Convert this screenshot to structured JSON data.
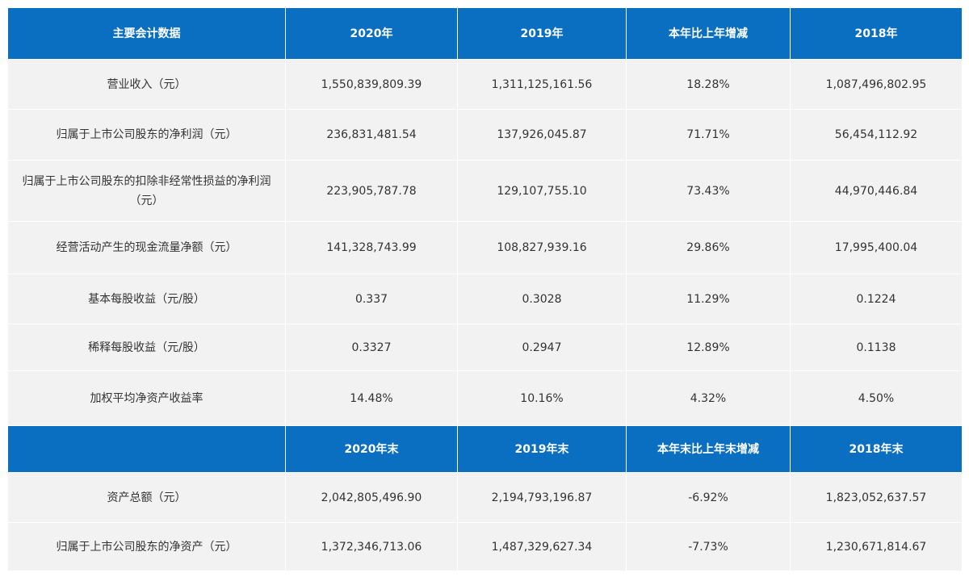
{
  "table1": {
    "header": [
      "主要会计数据",
      "2020年",
      "2019年",
      "本年比上年增减",
      "2018年"
    ],
    "rows": [
      [
        "营业收入（元）",
        "1,550,839,809.39",
        "1,311,125,161.56",
        "18.28%",
        "1,087,496,802.95"
      ],
      [
        "归属于上市公司股东的净利润（元）",
        "236,831,481.54",
        "137,926,045.87",
        "71.71%",
        "56,454,112.92"
      ],
      [
        "归属于上市公司股东的扣除非经常性损益的净利润（元）",
        "223,905,787.78",
        "129,107,755.10",
        "73.43%",
        "44,970,446.84"
      ],
      [
        "经营活动产生的现金流量净额（元）",
        "141,328,743.99",
        "108,827,939.16",
        "29.86%",
        "17,995,400.04"
      ],
      [
        "基本每股收益（元/股）",
        "0.337",
        "0.3028",
        "11.29%",
        "0.1224"
      ],
      [
        "稀释每股收益（元/股）",
        "0.3327",
        "0.2947",
        "12.89%",
        "0.1138"
      ],
      [
        "加权平均净资产收益率",
        "14.48%",
        "10.16%",
        "4.32%",
        "4.50%"
      ]
    ]
  },
  "table2": {
    "header": [
      "2020年末",
      "2019年末",
      "本年末比上年末增减",
      "2018年末"
    ],
    "rows": [
      [
        "资产总额（元）",
        "2,042,805,496.90",
        "2,194,793,196.87",
        "-6.92%",
        "1,823,052,637.57"
      ],
      [
        "归属于上市公司股东的净资产（元）",
        "1,372,346,713.06",
        "1,487,329,627.34",
        "-7.73%",
        "1,230,671,814.67"
      ]
    ]
  }
}
